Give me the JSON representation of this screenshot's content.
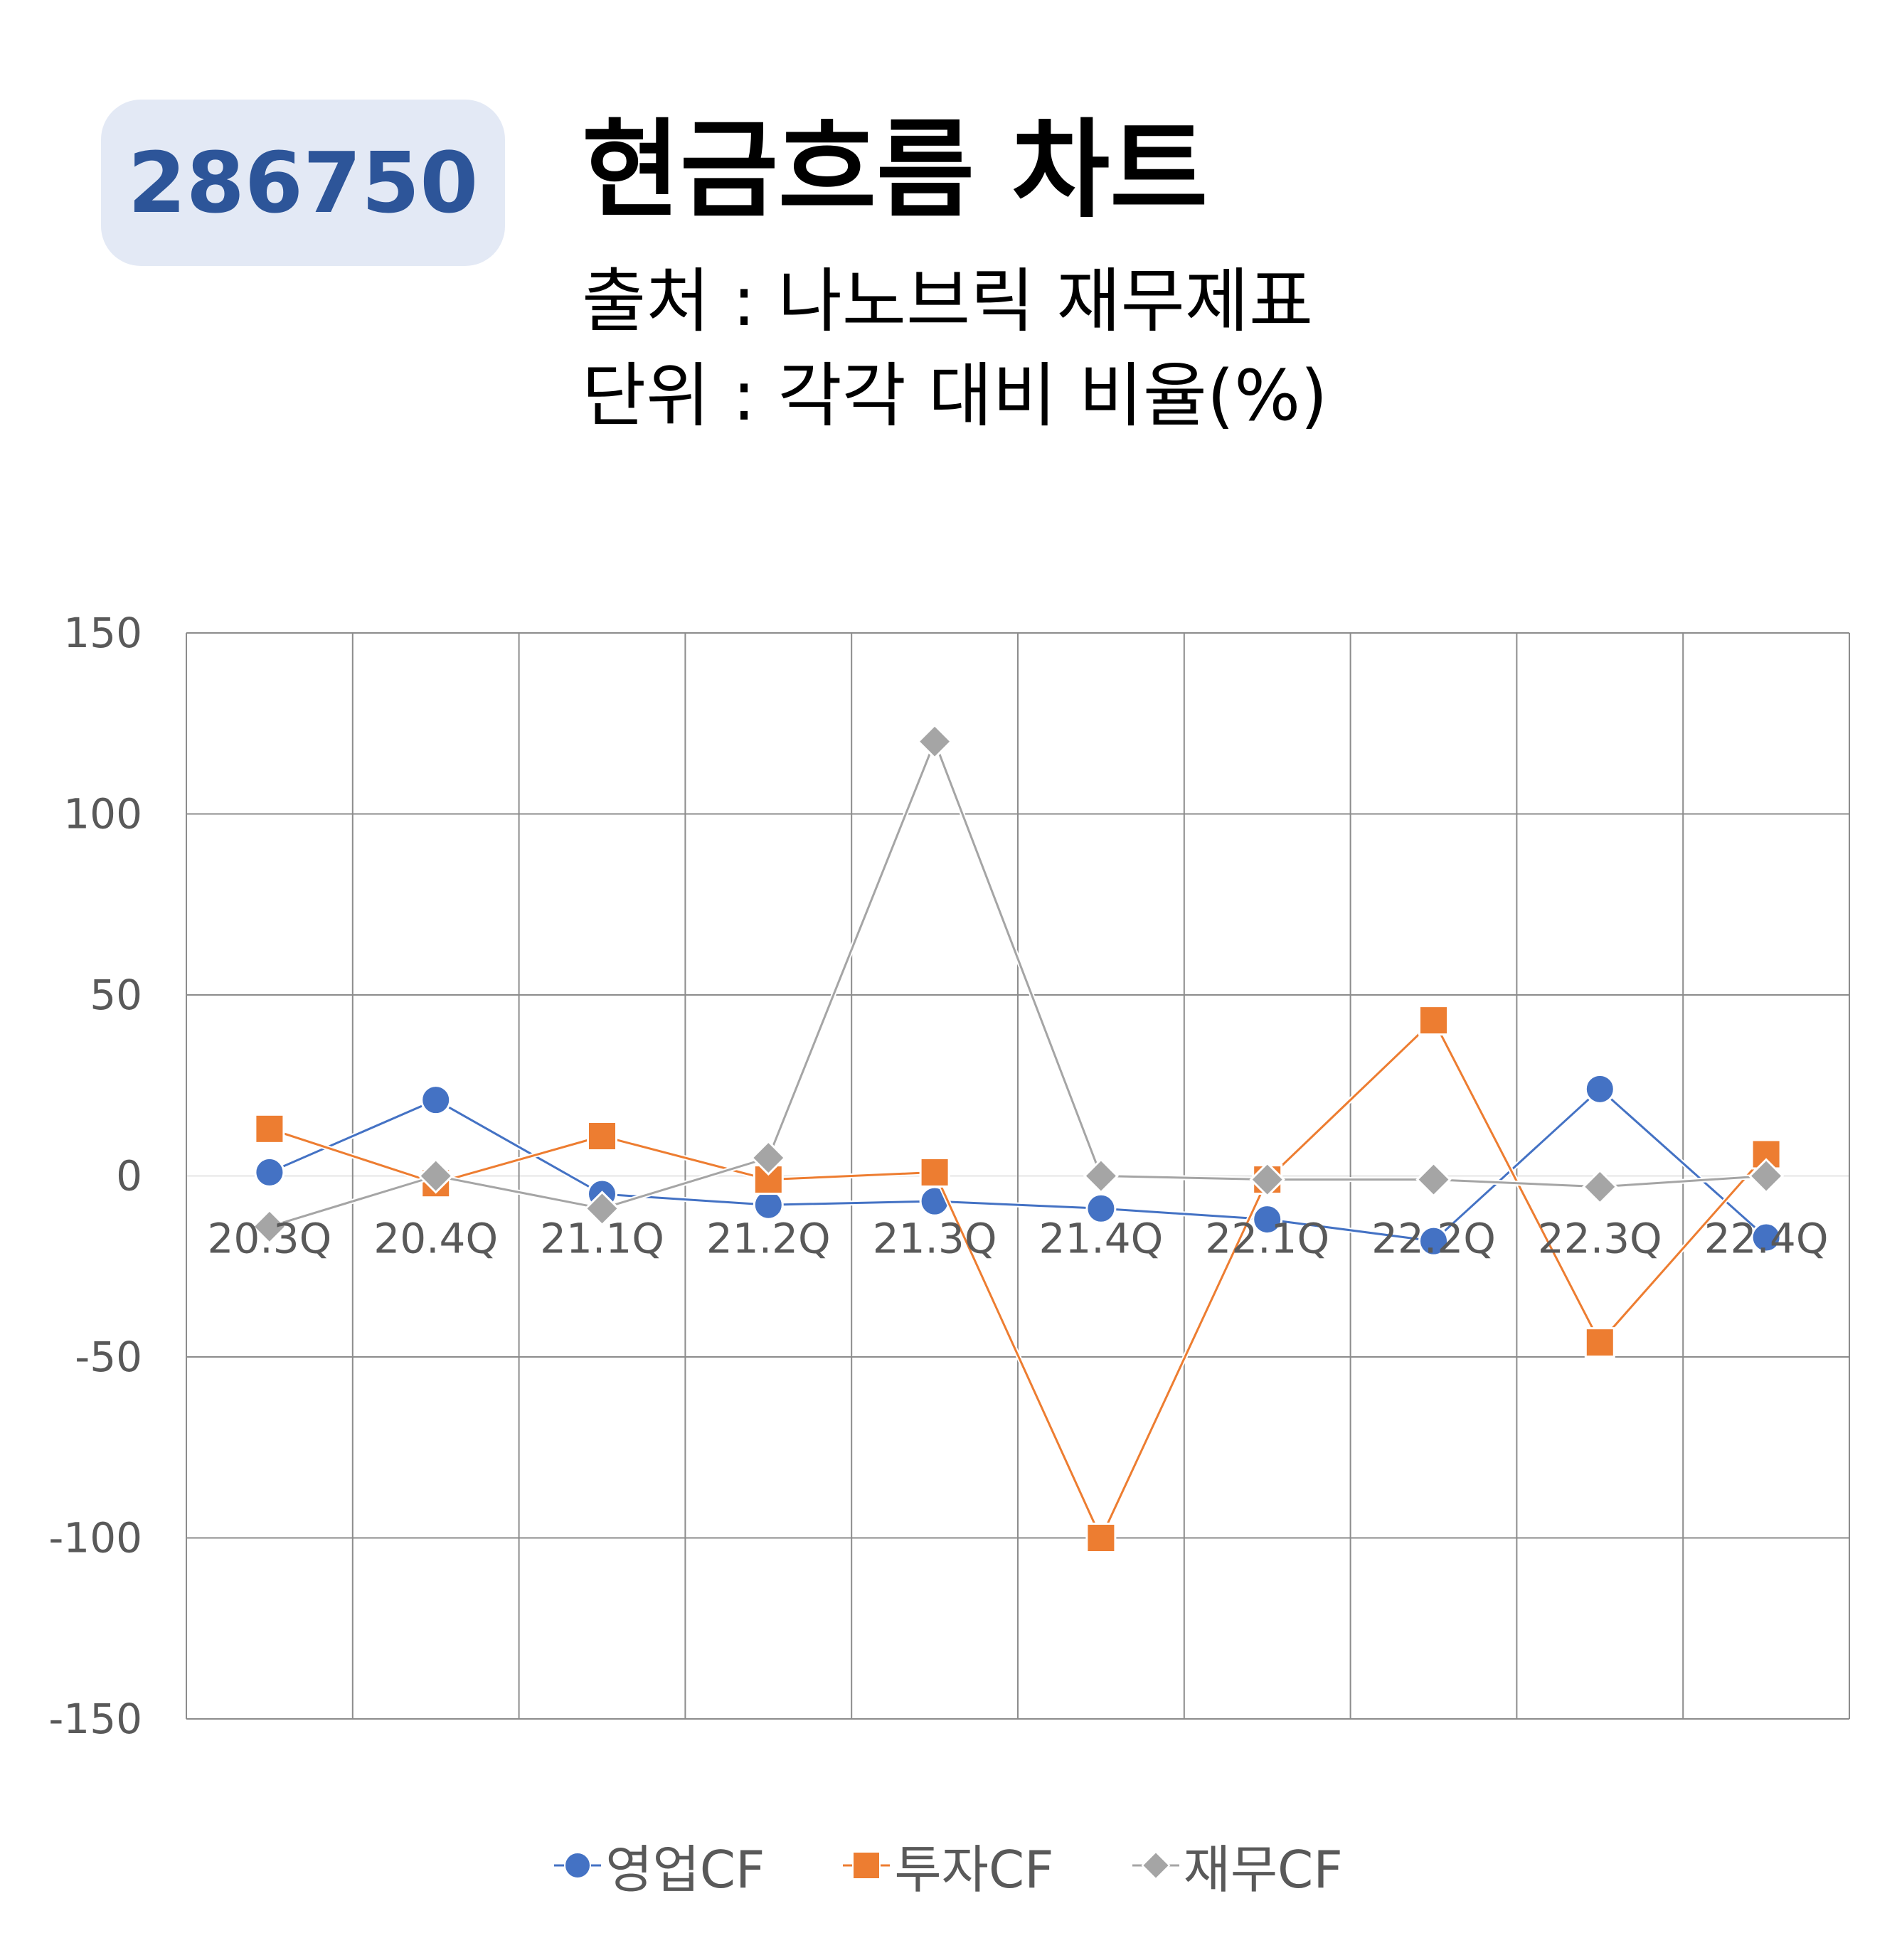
{
  "header": {
    "code": "286750",
    "title": "현금흐름 차트",
    "source": "출처 : 나노브릭 재무제표",
    "unit": "단위 : 각각 대비 비율(%)"
  },
  "chart_data": {
    "type": "line",
    "categories": [
      "20.3Q",
      "20.4Q",
      "21.1Q",
      "21.2Q",
      "21.3Q",
      "21.4Q",
      "22.1Q",
      "22.2Q",
      "22.3Q",
      "22.4Q"
    ],
    "ylim": [
      -150,
      150
    ],
    "yticks": [
      "150",
      "100",
      "50",
      "0",
      "-50",
      "-100",
      "-150"
    ],
    "grid": true,
    "legend_position": "bottom",
    "series": [
      {
        "name": "영업CF",
        "color": "#4472c4",
        "marker": "circle",
        "values": [
          1,
          21,
          -5,
          -8,
          -7,
          -9,
          -12,
          -18,
          24,
          -17
        ]
      },
      {
        "name": "투자CF",
        "color": "#ed7d31",
        "marker": "square",
        "values": [
          13,
          -2,
          11,
          -1,
          1,
          -100,
          -1,
          43,
          -46,
          6
        ]
      },
      {
        "name": "재무CF",
        "color": "#a5a5a5",
        "marker": "diamond",
        "values": [
          -14,
          0,
          -9,
          5,
          120,
          0,
          -1,
          -1,
          -3,
          0
        ]
      }
    ]
  }
}
